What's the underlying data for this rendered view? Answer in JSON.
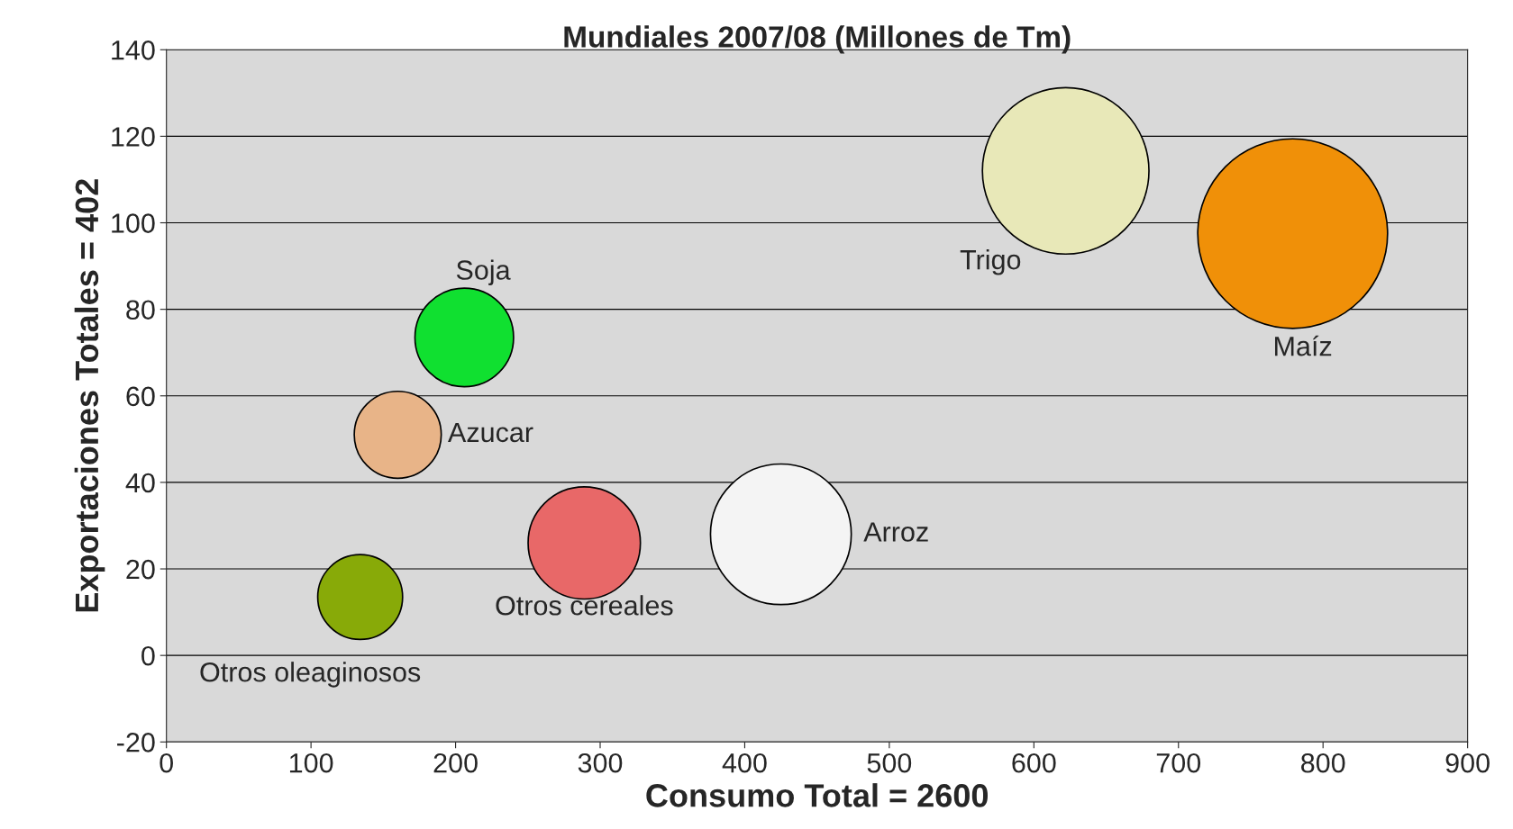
{
  "chart_data": {
    "type": "bubble",
    "title": "Mundiales 2007/08 (Millones de Tm)",
    "xlabel": "Consumo Total = 2600",
    "ylabel": "Exportaciones Totales = 402",
    "xlim": [
      0,
      900
    ],
    "xticks": [
      0,
      100,
      200,
      300,
      400,
      500,
      600,
      700,
      800,
      900
    ],
    "ylim": [
      -20,
      140
    ],
    "yticks": [
      -20,
      0,
      20,
      40,
      60,
      80,
      100,
      120,
      140
    ],
    "grid": "y",
    "series": [
      {
        "name": "Soja",
        "color": "#10e030",
        "x": [
          206
        ],
        "values": [
          73.5
        ],
        "sizes": [
          0.27
        ]
      },
      {
        "name": "Azucar",
        "color": "#e8b488",
        "x": [
          160
        ],
        "values": [
          51
        ],
        "sizes": [
          0.21
        ]
      },
      {
        "name": "Otros oleaginosos",
        "color": "#88aa08",
        "x": [
          134
        ],
        "values": [
          13.5
        ],
        "sizes": [
          0.2
        ]
      },
      {
        "name": "Otros cereales",
        "color": "#e86868",
        "x": [
          289
        ],
        "values": [
          26
        ],
        "sizes": [
          0.35
        ]
      },
      {
        "name": "Arroz",
        "color": "#f4f4f4",
        "x": [
          425
        ],
        "values": [
          28
        ],
        "sizes": [
          0.55
        ]
      },
      {
        "name": "Trigo",
        "color": "#e8e8b8",
        "x": [
          622
        ],
        "values": [
          112
        ],
        "sizes": [
          0.77
        ]
      },
      {
        "name": "Maíz",
        "color": "#f09008",
        "x": [
          779
        ],
        "values": [
          97.5
        ],
        "sizes": [
          1
        ]
      }
    ]
  }
}
